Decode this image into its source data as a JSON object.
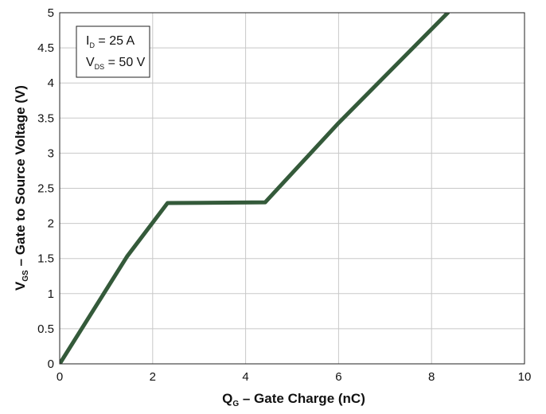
{
  "chart_data": {
    "type": "line",
    "xlim": [
      0,
      10
    ],
    "ylim": [
      0,
      5
    ],
    "x_ticks": [
      0,
      2,
      4,
      6,
      8,
      10
    ],
    "y_ticks": [
      0,
      0.5,
      1,
      1.5,
      2,
      2.5,
      3,
      3.5,
      4,
      4.5,
      5
    ],
    "x_tick_labels": [
      "0",
      "2",
      "4",
      "6",
      "8",
      "10"
    ],
    "y_tick_labels": [
      "0",
      "0.5",
      "1",
      "1.5",
      "2",
      "2.5",
      "3",
      "3.5",
      "4",
      "4.5",
      "5"
    ],
    "grid": true,
    "xlabel": {
      "main": "Q",
      "sub": "G",
      "rest": " – Gate Charge (nC)"
    },
    "ylabel": {
      "main": "V",
      "sub": "GS",
      "rest": " – Gate to Source Voltage (V)"
    },
    "annotation": {
      "placement": "top-left",
      "lines": [
        {
          "main": "I",
          "sub": "D",
          "rest": " = 25 A"
        },
        {
          "main": "V",
          "sub": "DS",
          "rest": " = 50 V"
        }
      ]
    },
    "series": [
      {
        "color": "#345a3a",
        "x": [
          0,
          1.45,
          2.32,
          4.42,
          6.0,
          8.35
        ],
        "y": [
          0,
          1.53,
          2.29,
          2.3,
          3.43,
          5.0
        ]
      }
    ]
  }
}
